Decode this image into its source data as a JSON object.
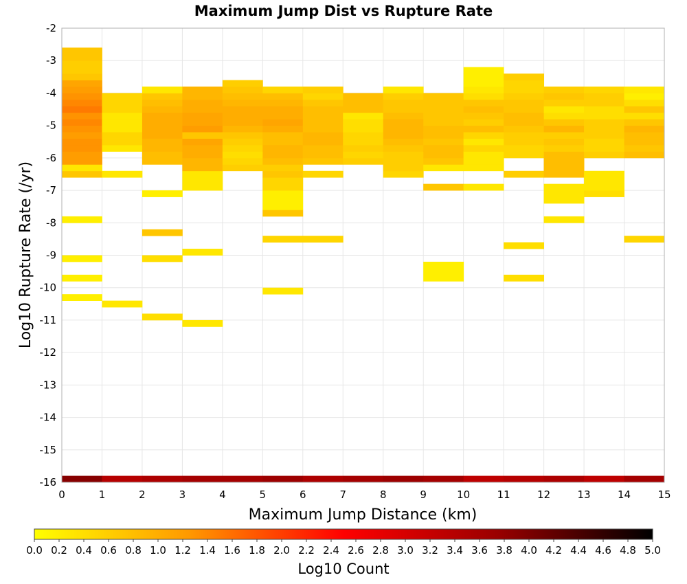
{
  "chart_data": {
    "type": "heatmap",
    "title": "Maximum Jump Dist vs Rupture Rate",
    "xlabel": "Maximum Jump Distance (km)",
    "ylabel": "Log10 Rupture Rate (/yr)",
    "xlim": [
      0,
      15
    ],
    "ylim": [
      -16,
      -2
    ],
    "x_ticks": [
      "0",
      "1",
      "2",
      "3",
      "4",
      "5",
      "6",
      "7",
      "8",
      "9",
      "10",
      "11",
      "12",
      "13",
      "14",
      "15"
    ],
    "y_ticks": [
      "-2",
      "-3",
      "-4",
      "-5",
      "-6",
      "-7",
      "-8",
      "-9",
      "-10",
      "-11",
      "-12",
      "-13",
      "-14",
      "-15",
      "-16"
    ],
    "grid": true,
    "x_bin_width": 1,
    "y_bin_height": 0.2,
    "colorbar": {
      "label": "Log10 Count",
      "min": 0.0,
      "max": 5.0,
      "ticks": [
        "0.0",
        "0.2",
        "0.4",
        "0.6",
        "0.8",
        "1.0",
        "1.2",
        "1.4",
        "1.6",
        "1.8",
        "2.0",
        "2.2",
        "2.4",
        "2.6",
        "2.8",
        "3.0",
        "3.2",
        "3.4",
        "3.6",
        "3.8",
        "4.0",
        "4.2",
        "4.4",
        "4.6",
        "4.8",
        "5.0"
      ],
      "colors": [
        "#ffff00",
        "#ff9900",
        "#ff0000",
        "#990000",
        "#000000"
      ]
    },
    "columns": [
      {
        "x": 0,
        "bins": [
          [
            -16,
            3.9
          ],
          [
            -10.4,
            0.2
          ],
          [
            -9.8,
            0.2
          ],
          [
            -9.2,
            0.2
          ],
          [
            -8.0,
            0.2
          ],
          [
            -6.6,
            0.7
          ],
          [
            -6.4,
            0.3
          ],
          [
            -6.2,
            1.2
          ],
          [
            -6.0,
            1.2
          ],
          [
            -5.8,
            1.3
          ],
          [
            -5.6,
            1.3
          ],
          [
            -5.4,
            1.2
          ],
          [
            -5.2,
            1.3
          ],
          [
            -5.0,
            1.4
          ],
          [
            -4.8,
            1.3
          ],
          [
            -4.6,
            1.5
          ],
          [
            -4.4,
            1.4
          ],
          [
            -4.2,
            1.3
          ],
          [
            -4.0,
            1.2
          ],
          [
            -3.8,
            1.1
          ],
          [
            -3.6,
            0.7
          ],
          [
            -3.4,
            0.6
          ],
          [
            -3.2,
            0.6
          ],
          [
            -3.0,
            0.7
          ],
          [
            -2.8,
            0.7
          ]
        ]
      },
      {
        "x": 1,
        "bins": [
          [
            -16,
            3.4
          ],
          [
            -10.6,
            0.3
          ],
          [
            -6.6,
            0.3
          ],
          [
            -5.8,
            0.3
          ],
          [
            -5.6,
            0.5
          ],
          [
            -5.4,
            0.5
          ],
          [
            -5.2,
            0.3
          ],
          [
            -5.0,
            0.3
          ],
          [
            -4.8,
            0.3
          ],
          [
            -4.6,
            0.5
          ],
          [
            -4.4,
            0.5
          ],
          [
            -4.2,
            0.5
          ]
        ]
      },
      {
        "x": 2,
        "bins": [
          [
            -16,
            3.5
          ],
          [
            -11.0,
            0.4
          ],
          [
            -9.2,
            0.4
          ],
          [
            -8.4,
            0.7
          ],
          [
            -7.2,
            0.2
          ],
          [
            -6.2,
            0.8
          ],
          [
            -6.0,
            0.8
          ],
          [
            -5.8,
            0.9
          ],
          [
            -5.6,
            0.9
          ],
          [
            -5.4,
            1.0
          ],
          [
            -5.2,
            1.0
          ],
          [
            -5.0,
            1.0
          ],
          [
            -4.8,
            1.0
          ],
          [
            -4.6,
            0.9
          ],
          [
            -4.4,
            0.8
          ],
          [
            -4.2,
            0.7
          ],
          [
            -4.0,
            0.3
          ]
        ]
      },
      {
        "x": 3,
        "bins": [
          [
            -16,
            3.6
          ],
          [
            -11.2,
            0.3
          ],
          [
            -9.0,
            0.3
          ],
          [
            -7.0,
            0.3
          ],
          [
            -6.8,
            0.3
          ],
          [
            -6.6,
            0.3
          ],
          [
            -6.4,
            0.9
          ],
          [
            -6.2,
            0.9
          ],
          [
            -6.0,
            1.0
          ],
          [
            -5.8,
            1.0
          ],
          [
            -5.6,
            1.1
          ],
          [
            -5.4,
            0.7
          ],
          [
            -5.2,
            1.2
          ],
          [
            -5.0,
            1.1
          ],
          [
            -4.8,
            1.1
          ],
          [
            -4.6,
            1.0
          ],
          [
            -4.4,
            1.0
          ],
          [
            -4.2,
            0.9
          ],
          [
            -4.0,
            0.9
          ]
        ]
      },
      {
        "x": 4,
        "bins": [
          [
            -16,
            3.6
          ],
          [
            -6.4,
            0.6
          ],
          [
            -6.2,
            0.5
          ],
          [
            -6.0,
            0.4
          ],
          [
            -5.8,
            0.5
          ],
          [
            -5.6,
            0.6
          ],
          [
            -5.4,
            0.7
          ],
          [
            -5.2,
            0.9
          ],
          [
            -5.0,
            1.0
          ],
          [
            -4.8,
            1.0
          ],
          [
            -4.6,
            1.0
          ],
          [
            -4.4,
            0.9
          ],
          [
            -4.2,
            0.8
          ],
          [
            -4.0,
            0.7
          ],
          [
            -3.8,
            0.6
          ]
        ]
      },
      {
        "x": 5,
        "bins": [
          [
            -16,
            3.7
          ],
          [
            -10.2,
            0.3
          ],
          [
            -8.6,
            0.5
          ],
          [
            -7.8,
            0.7
          ],
          [
            -7.6,
            0.2
          ],
          [
            -7.4,
            0.2
          ],
          [
            -7.2,
            0.2
          ],
          [
            -7.0,
            0.5
          ],
          [
            -6.8,
            0.5
          ],
          [
            -6.6,
            0.7
          ],
          [
            -6.4,
            0.6
          ],
          [
            -6.2,
            0.8
          ],
          [
            -6.0,
            0.9
          ],
          [
            -5.8,
            0.9
          ],
          [
            -5.6,
            0.8
          ],
          [
            -5.4,
            0.8
          ],
          [
            -5.2,
            1.0
          ],
          [
            -5.0,
            1.1
          ],
          [
            -4.8,
            1.0
          ],
          [
            -4.6,
            1.0
          ],
          [
            -4.4,
            0.9
          ],
          [
            -4.2,
            0.8
          ],
          [
            -4.0,
            0.5
          ]
        ]
      },
      {
        "x": 6,
        "bins": [
          [
            -16,
            3.5
          ],
          [
            -8.6,
            0.5
          ],
          [
            -6.6,
            0.5
          ],
          [
            -6.2,
            0.7
          ],
          [
            -6.0,
            0.8
          ],
          [
            -5.8,
            0.8
          ],
          [
            -5.6,
            0.9
          ],
          [
            -5.4,
            0.9
          ],
          [
            -5.2,
            0.8
          ],
          [
            -5.0,
            0.8
          ],
          [
            -4.8,
            0.8
          ],
          [
            -4.6,
            0.8
          ],
          [
            -4.4,
            0.7
          ],
          [
            -4.2,
            0.5
          ],
          [
            -4.0,
            0.6
          ]
        ]
      },
      {
        "x": 7,
        "bins": [
          [
            -16,
            3.6
          ],
          [
            -6.2,
            0.6
          ],
          [
            -6.0,
            0.5
          ],
          [
            -5.8,
            0.6
          ],
          [
            -5.6,
            0.5
          ],
          [
            -5.4,
            0.5
          ],
          [
            -5.2,
            0.4
          ],
          [
            -5.0,
            0.4
          ],
          [
            -4.8,
            0.3
          ],
          [
            -4.6,
            0.8
          ],
          [
            -4.4,
            0.8
          ],
          [
            -4.2,
            0.8
          ]
        ]
      },
      {
        "x": 8,
        "bins": [
          [
            -16,
            3.7
          ],
          [
            -6.6,
            0.5
          ],
          [
            -6.4,
            0.6
          ],
          [
            -6.2,
            0.6
          ],
          [
            -6.0,
            0.6
          ],
          [
            -5.8,
            0.7
          ],
          [
            -5.6,
            0.8
          ],
          [
            -5.4,
            0.9
          ],
          [
            -5.2,
            0.9
          ],
          [
            -5.0,
            0.9
          ],
          [
            -4.8,
            0.8
          ],
          [
            -4.6,
            0.7
          ],
          [
            -4.4,
            0.7
          ],
          [
            -4.2,
            0.6
          ],
          [
            -4.0,
            0.3
          ]
        ]
      },
      {
        "x": 9,
        "bins": [
          [
            -16,
            3.6
          ],
          [
            -9.8,
            0.2
          ],
          [
            -9.6,
            0.2
          ],
          [
            -9.4,
            0.2
          ],
          [
            -7.0,
            0.7
          ],
          [
            -6.4,
            0.3
          ],
          [
            -6.2,
            0.7
          ],
          [
            -6.0,
            0.8
          ],
          [
            -5.8,
            0.8
          ],
          [
            -5.6,
            0.7
          ],
          [
            -5.4,
            0.8
          ],
          [
            -5.2,
            0.8
          ],
          [
            -5.0,
            0.7
          ],
          [
            -4.8,
            0.7
          ],
          [
            -4.6,
            0.7
          ],
          [
            -4.4,
            0.7
          ],
          [
            -4.2,
            0.7
          ]
        ]
      },
      {
        "x": 10,
        "bins": [
          [
            -16,
            3.3
          ],
          [
            -7.0,
            0.3
          ],
          [
            -6.4,
            0.3
          ],
          [
            -6.2,
            0.3
          ],
          [
            -6.0,
            0.3
          ],
          [
            -5.8,
            0.5
          ],
          [
            -5.6,
            0.3
          ],
          [
            -5.4,
            0.5
          ],
          [
            -5.2,
            0.8
          ],
          [
            -5.0,
            0.6
          ],
          [
            -4.8,
            0.7
          ],
          [
            -4.6,
            0.8
          ],
          [
            -4.4,
            0.7
          ],
          [
            -4.2,
            0.4
          ],
          [
            -4.0,
            0.3
          ],
          [
            -3.8,
            0.2
          ],
          [
            -3.6,
            0.2
          ],
          [
            -3.4,
            0.2
          ]
        ]
      },
      {
        "x": 11,
        "bins": [
          [
            -16,
            3.4
          ],
          [
            -9.8,
            0.4
          ],
          [
            -8.8,
            0.4
          ],
          [
            -6.6,
            0.6
          ],
          [
            -6.0,
            0.5
          ],
          [
            -5.8,
            0.5
          ],
          [
            -5.6,
            0.6
          ],
          [
            -5.4,
            0.6
          ],
          [
            -5.2,
            0.7
          ],
          [
            -5.0,
            0.8
          ],
          [
            -4.8,
            0.8
          ],
          [
            -4.6,
            0.7
          ],
          [
            -4.4,
            0.7
          ],
          [
            -4.2,
            0.6
          ],
          [
            -4.0,
            0.5
          ],
          [
            -3.8,
            0.5
          ],
          [
            -3.6,
            0.6
          ]
        ]
      },
      {
        "x": 12,
        "bins": [
          [
            -16,
            3.5
          ],
          [
            -8.0,
            0.3
          ],
          [
            -7.4,
            0.3
          ],
          [
            -7.2,
            0.3
          ],
          [
            -7.0,
            0.3
          ],
          [
            -6.6,
            0.8
          ],
          [
            -6.4,
            0.8
          ],
          [
            -6.2,
            0.8
          ],
          [
            -6.0,
            0.8
          ],
          [
            -5.8,
            0.6
          ],
          [
            -5.6,
            0.7
          ],
          [
            -5.4,
            0.6
          ],
          [
            -5.2,
            0.9
          ],
          [
            -5.0,
            0.7
          ],
          [
            -4.8,
            0.4
          ],
          [
            -4.6,
            0.3
          ],
          [
            -4.4,
            0.6
          ],
          [
            -4.2,
            0.7
          ],
          [
            -4.0,
            0.6
          ]
        ]
      },
      {
        "x": 13,
        "bins": [
          [
            -16,
            3.3
          ],
          [
            -7.2,
            0.4
          ],
          [
            -7.0,
            0.3
          ],
          [
            -6.8,
            0.3
          ],
          [
            -6.6,
            0.3
          ],
          [
            -6.0,
            0.6
          ],
          [
            -5.8,
            0.5
          ],
          [
            -5.6,
            0.5
          ],
          [
            -5.4,
            0.6
          ],
          [
            -5.2,
            0.6
          ],
          [
            -5.0,
            0.6
          ],
          [
            -4.8,
            0.4
          ],
          [
            -4.6,
            0.4
          ],
          [
            -4.4,
            0.6
          ],
          [
            -4.2,
            0.6
          ],
          [
            -4.0,
            0.5
          ]
        ]
      },
      {
        "x": 14,
        "bins": [
          [
            -16,
            3.6
          ],
          [
            -8.6,
            0.5
          ],
          [
            -6.0,
            0.8
          ],
          [
            -5.8,
            0.7
          ],
          [
            -5.6,
            0.8
          ],
          [
            -5.4,
            0.8
          ],
          [
            -5.2,
            0.9
          ],
          [
            -5.0,
            0.7
          ],
          [
            -4.8,
            0.4
          ],
          [
            -4.6,
            0.7
          ],
          [
            -4.4,
            0.4
          ],
          [
            -4.2,
            0.2
          ],
          [
            -4.0,
            0.3
          ]
        ]
      }
    ]
  }
}
